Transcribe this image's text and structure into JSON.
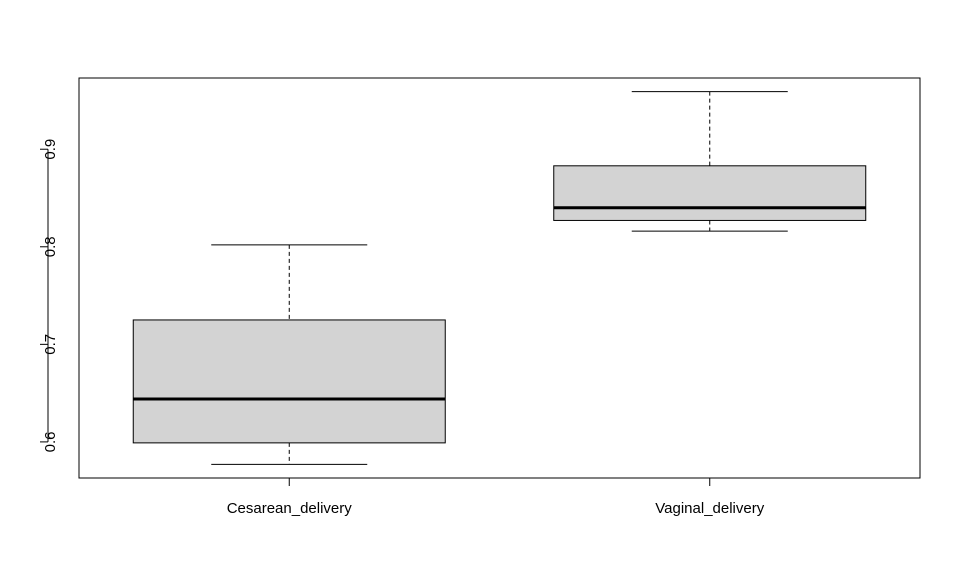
{
  "chart_data": {
    "type": "boxplot",
    "title": "",
    "xlabel": "",
    "ylabel": "",
    "categories": [
      "Cesarean_delivery",
      "Vaginal_delivery"
    ],
    "boxes": [
      {
        "category": "Cesarean_delivery",
        "whisker_low": 0.577,
        "q1": 0.599,
        "median": 0.644,
        "q3": 0.725,
        "whisker_high": 0.802
      },
      {
        "category": "Vaginal_delivery",
        "whisker_low": 0.816,
        "q1": 0.827,
        "median": 0.84,
        "q3": 0.883,
        "whisker_high": 0.959
      }
    ],
    "ylim": [
      0.563,
      0.973
    ],
    "y_ticks": [
      "0.6",
      "0.7",
      "0.8",
      "0.9"
    ],
    "grid": false,
    "box_fill": "#d3d3d3",
    "line_color": "#000000"
  }
}
